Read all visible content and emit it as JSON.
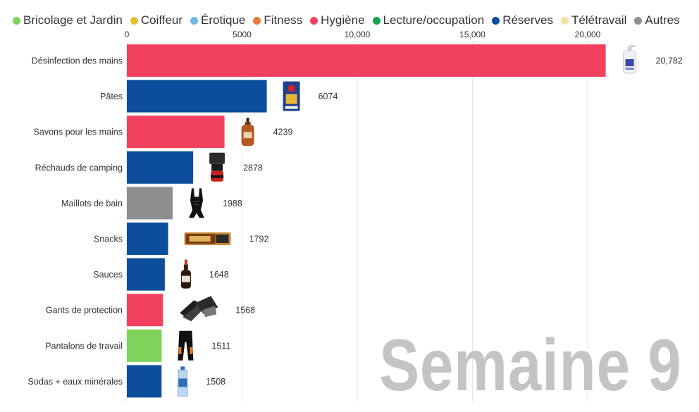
{
  "legend": [
    {
      "label": "Bricolage et Jardin",
      "color": "#7ED35A"
    },
    {
      "label": "Coiffeur",
      "color": "#E8BE30"
    },
    {
      "label": "Érotique",
      "color": "#6CB9E6"
    },
    {
      "label": "Fitness",
      "color": "#E57A3C"
    },
    {
      "label": "Hygiène",
      "color": "#F2415E"
    },
    {
      "label": "Lecture/occupation",
      "color": "#17A24E"
    },
    {
      "label": "Réserves",
      "color": "#0C4E9B"
    },
    {
      "label": "Télétravail",
      "color": "#F7E19E"
    },
    {
      "label": "Autres",
      "color": "#8E8E8E"
    }
  ],
  "chart_data": {
    "type": "bar",
    "orientation": "horizontal",
    "xlim": [
      0,
      21000
    ],
    "xticks": [
      0,
      5000,
      10000,
      15000,
      20000
    ],
    "xtick_labels": [
      "0",
      "5000",
      "10,000",
      "15,000",
      "20,000"
    ],
    "grid": true,
    "categories": [
      "Désinfection des mains",
      "Pâtes",
      "Savons pour les mains",
      "Réchauds de camping",
      "Maillots de bain",
      "Snacks",
      "Sauces",
      "Gants de protection",
      "Pantalons de travail",
      "Sodas + eaux minérales"
    ],
    "values": [
      20782,
      6074,
      4239,
      2878,
      1988,
      1792,
      1648,
      1568,
      1511,
      1508
    ],
    "value_labels": [
      "20,782",
      "6074",
      "4239",
      "2878",
      "1988",
      "1792",
      "1648",
      "1568",
      "1511",
      "1508"
    ],
    "bar_groups": [
      "Hygiène",
      "Réserves",
      "Hygiène",
      "Réserves",
      "Autres",
      "Réserves",
      "Réserves",
      "Hygiène",
      "Bricolage et Jardin",
      "Réserves"
    ],
    "bar_icons": [
      "sanitizer-bottle-icon",
      "pasta-box-icon",
      "soap-bottle-icon",
      "camping-stove-icon",
      "swimsuit-icon",
      "snack-bar-icon",
      "sauce-bottle-icon",
      "gloves-icon",
      "work-pants-icon",
      "water-bottle-icon"
    ]
  },
  "watermark": {
    "week": "Semaine 9"
  }
}
